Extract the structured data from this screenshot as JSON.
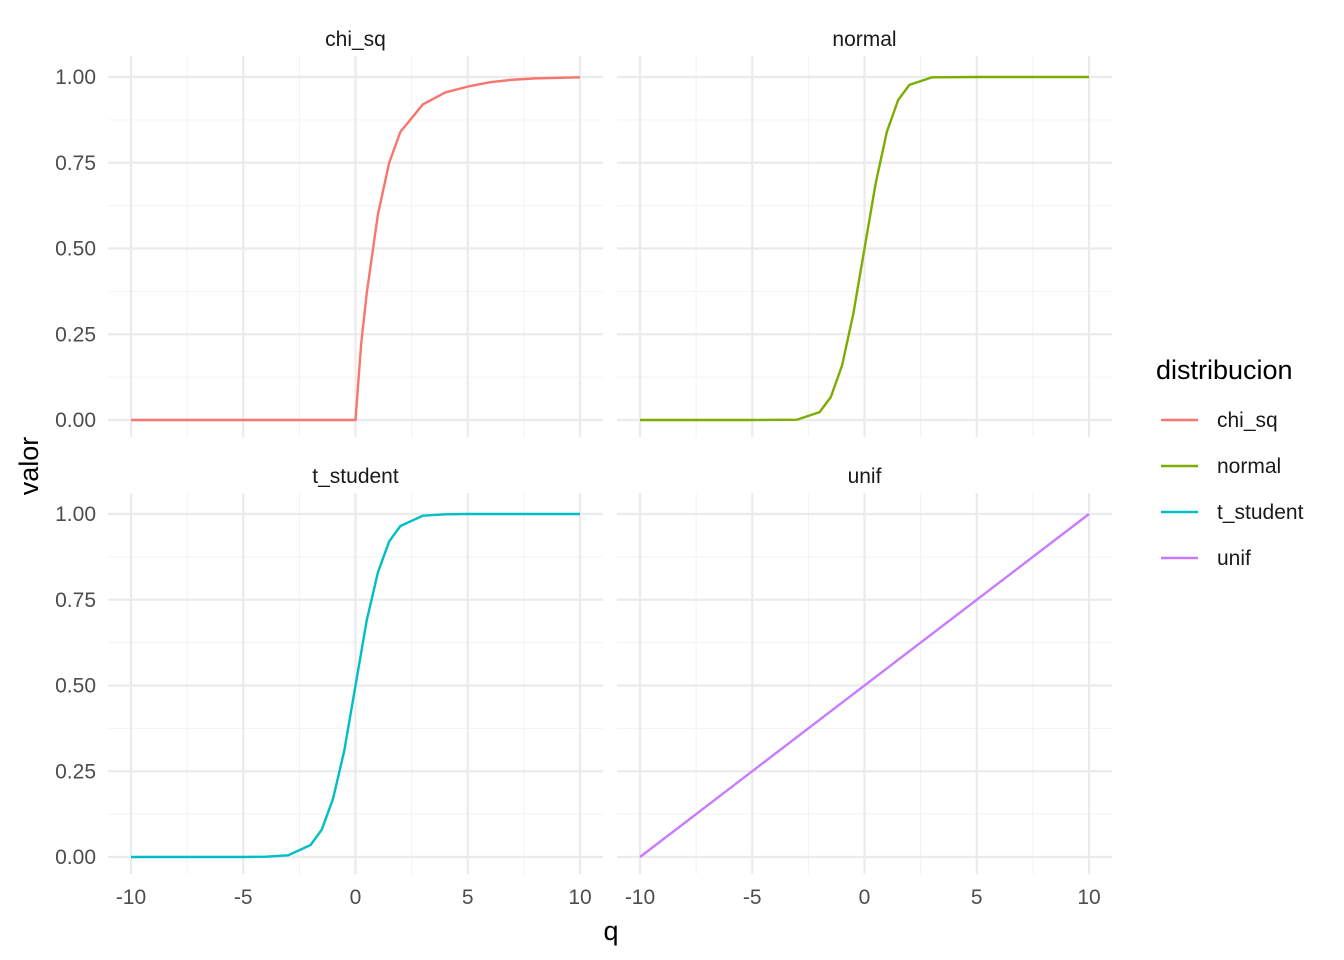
{
  "chart_data": {
    "type": "line",
    "layout": "facet-grid-2x2",
    "xlabel": "q",
    "ylabel": "valor",
    "xlim": [
      -10,
      10
    ],
    "ylim": [
      0,
      1
    ],
    "x_ticks": [
      "-10",
      "-5",
      "0",
      "5",
      "10"
    ],
    "y_ticks": [
      "0.00",
      "0.25",
      "0.50",
      "0.75",
      "1.00"
    ],
    "grid": true,
    "legend": {
      "title": "distribucion",
      "placement": "right",
      "entries": [
        "chi_sq",
        "normal",
        "t_student",
        "unif"
      ]
    },
    "panels": [
      {
        "title": "chi_sq",
        "color": "#F8766D",
        "x": [
          -10,
          -5,
          0,
          0.25,
          0.5,
          1,
          1.5,
          2,
          3,
          4,
          5,
          6,
          7,
          8,
          10
        ],
        "y": [
          0,
          0,
          0,
          0.22,
          0.37,
          0.6,
          0.75,
          0.84,
          0.92,
          0.955,
          0.972,
          0.985,
          0.992,
          0.996,
          0.999
        ]
      },
      {
        "title": "normal",
        "color": "#7CAE00",
        "x": [
          -10,
          -5,
          -3,
          -2,
          -1.5,
          -1,
          -0.5,
          0,
          0.5,
          1,
          1.5,
          2,
          3,
          5,
          10
        ],
        "y": [
          0,
          0,
          0.001,
          0.023,
          0.067,
          0.159,
          0.309,
          0.5,
          0.691,
          0.841,
          0.933,
          0.977,
          0.999,
          1,
          1
        ]
      },
      {
        "title": "t_student",
        "color": "#00BFC4",
        "x": [
          -10,
          -5,
          -4,
          -3,
          -2,
          -1.5,
          -1,
          -0.5,
          0,
          0.5,
          1,
          1.5,
          2,
          3,
          4,
          5,
          10
        ],
        "y": [
          0,
          0,
          0.001,
          0.005,
          0.035,
          0.08,
          0.17,
          0.31,
          0.5,
          0.69,
          0.83,
          0.92,
          0.965,
          0.995,
          0.999,
          1,
          1
        ]
      },
      {
        "title": "unif",
        "color": "#C77CFF",
        "x": [
          -10,
          10
        ],
        "y": [
          0,
          1
        ]
      }
    ]
  }
}
